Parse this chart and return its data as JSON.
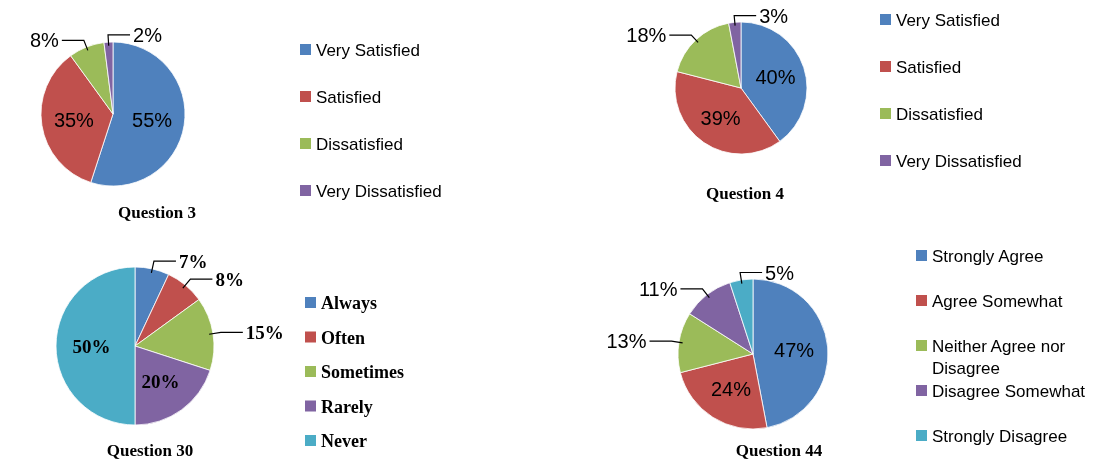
{
  "chart_data": [
    {
      "type": "pie",
      "title": "Question 3",
      "categories": [
        "Very Satisfied",
        "Satisfied",
        "Dissatisfied",
        "Very Dissatisfied"
      ],
      "values": [
        55,
        35,
        8,
        2
      ],
      "value_labels": [
        "55%",
        "35%",
        "8%",
        "2%"
      ],
      "colors": [
        "#4f81bd",
        "#c0504d",
        "#9bbb59",
        "#8064a2"
      ],
      "legend": "right"
    },
    {
      "type": "pie",
      "title": "Question 4",
      "categories": [
        "Very Satisfied",
        "Satisfied",
        "Dissatisfied",
        "Very Dissatisfied"
      ],
      "values": [
        40,
        39,
        18,
        3
      ],
      "value_labels": [
        "40%",
        "39%",
        "18%",
        "3%"
      ],
      "colors": [
        "#4f81bd",
        "#c0504d",
        "#9bbb59",
        "#8064a2"
      ],
      "legend": "right"
    },
    {
      "type": "pie",
      "title": "Question 30",
      "categories": [
        "Always",
        "Often",
        "Sometimes",
        "Rarely",
        "Never"
      ],
      "values": [
        7,
        8,
        15,
        20,
        50
      ],
      "value_labels": [
        "7%",
        "8%",
        "15%",
        "20%",
        "50%"
      ],
      "colors": [
        "#4f81bd",
        "#c0504d",
        "#9bbb59",
        "#8064a2",
        "#4bacc6"
      ],
      "legend": "right"
    },
    {
      "type": "pie",
      "title": "Question 44",
      "categories": [
        "Strongly Agree",
        "Agree Somewhat",
        "Neither Agree nor Disagree",
        "Disagree Somewhat",
        "Strongly Disagree"
      ],
      "values": [
        47,
        24,
        13,
        11,
        5
      ],
      "value_labels": [
        "47%",
        "24%",
        "13%",
        "11%",
        "5%"
      ],
      "colors": [
        "#4f81bd",
        "#c0504d",
        "#9bbb59",
        "#8064a2",
        "#4bacc6"
      ],
      "legend": "right"
    }
  ]
}
